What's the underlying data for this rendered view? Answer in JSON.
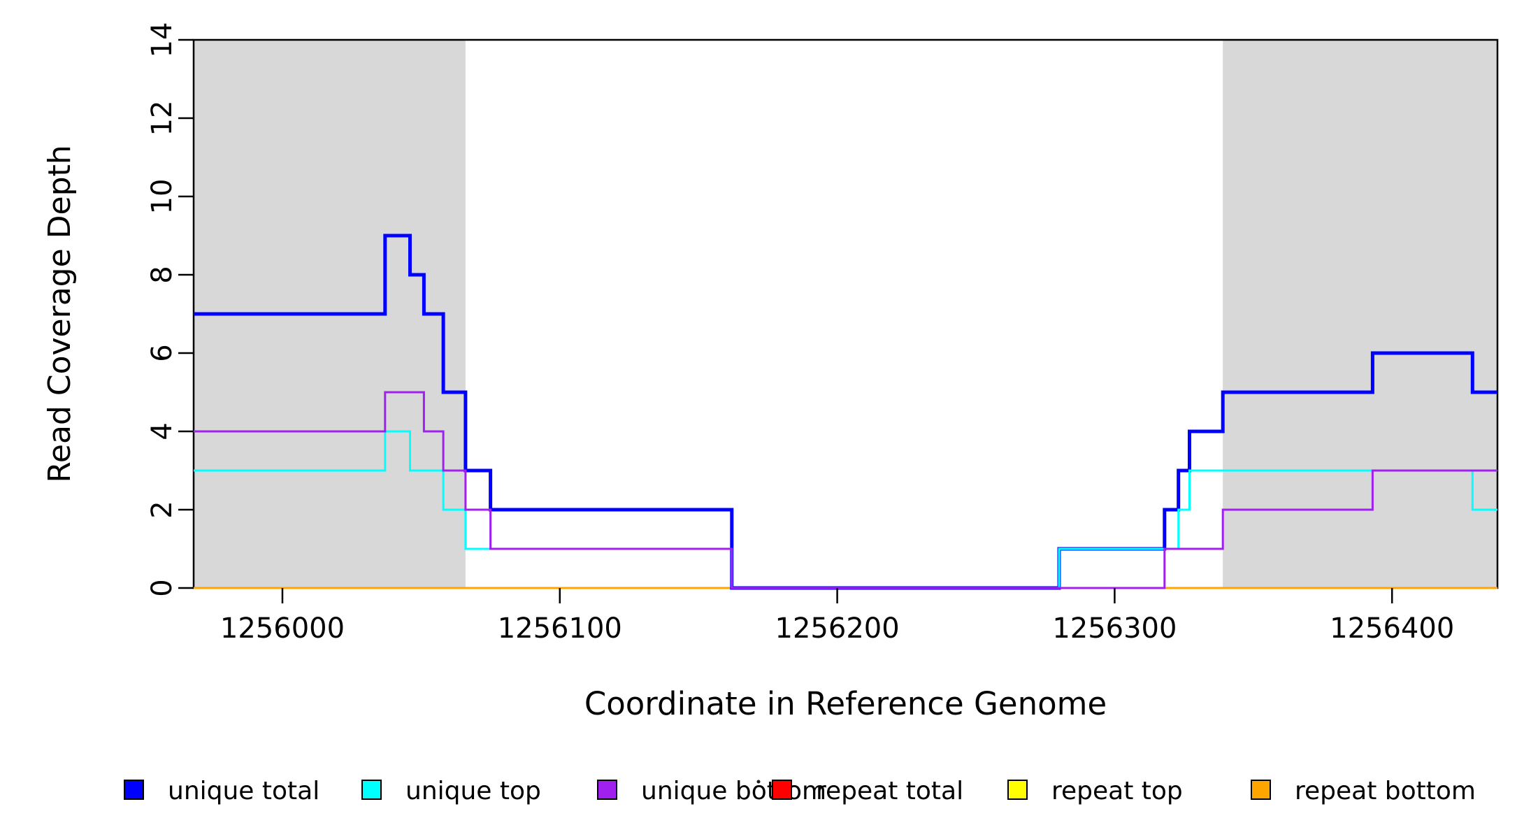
{
  "chart_data": {
    "type": "line",
    "subtype": "step",
    "title": "",
    "xlabel": "Coordinate in Reference Genome",
    "ylabel": "Read Coverage Depth",
    "xlim": [
      1255968,
      1256438
    ],
    "ylim": [
      0,
      14
    ],
    "grid": false,
    "x_ticks": {
      "values": [
        1256000,
        1256100,
        1256200,
        1256300,
        1256400
      ],
      "labels": [
        "1256000",
        "1256100",
        "1256200",
        "1256300",
        "1256400"
      ]
    },
    "y_ticks": {
      "values": [
        0,
        2,
        4,
        6,
        8,
        10,
        12,
        14
      ],
      "labels": [
        "0",
        "2",
        "4",
        "6",
        "8",
        "10",
        "12",
        "14"
      ]
    },
    "shaded_regions": [
      {
        "x0": 1255968,
        "x1": 1256066,
        "color": "#d8d8d8"
      },
      {
        "x0": 1256339,
        "x1": 1256438,
        "color": "#d8d8d8"
      }
    ],
    "series": [
      {
        "name": "unique total",
        "color": "#0000ff",
        "line_width": 5,
        "steps": [
          [
            1255968,
            7
          ],
          [
            1256037,
            9
          ],
          [
            1256046,
            8
          ],
          [
            1256051,
            7
          ],
          [
            1256058,
            5
          ],
          [
            1256066,
            3
          ],
          [
            1256075,
            2
          ],
          [
            1256162,
            0
          ],
          [
            1256280,
            1
          ],
          [
            1256318,
            2
          ],
          [
            1256323,
            3
          ],
          [
            1256327,
            4
          ],
          [
            1256339,
            5
          ],
          [
            1256393,
            6
          ],
          [
            1256429,
            5
          ]
        ]
      },
      {
        "name": "unique top",
        "color": "#00ffff",
        "line_width": 3,
        "steps": [
          [
            1255968,
            3
          ],
          [
            1256037,
            4
          ],
          [
            1256046,
            3
          ],
          [
            1256058,
            2
          ],
          [
            1256066,
            1
          ],
          [
            1256162,
            0
          ],
          [
            1256280,
            1
          ],
          [
            1256323,
            2
          ],
          [
            1256327,
            3
          ],
          [
            1256429,
            2
          ]
        ]
      },
      {
        "name": "unique bottom",
        "color": "#a020f0",
        "line_width": 3,
        "steps": [
          [
            1255968,
            4
          ],
          [
            1256037,
            5
          ],
          [
            1256051,
            4
          ],
          [
            1256058,
            3
          ],
          [
            1256066,
            2
          ],
          [
            1256075,
            1
          ],
          [
            1256162,
            0
          ],
          [
            1256318,
            1
          ],
          [
            1256339,
            2
          ],
          [
            1256393,
            3
          ]
        ]
      },
      {
        "name": "repeat total",
        "color": "#ff0000",
        "line_width": 3,
        "steps": [
          [
            1255968,
            0
          ]
        ]
      },
      {
        "name": "repeat top",
        "color": "#ffff00",
        "line_width": 3,
        "steps": [
          [
            1255968,
            0
          ]
        ]
      },
      {
        "name": "repeat bottom",
        "color": "#ffa500",
        "line_width": 3,
        "steps": [
          [
            1255968,
            0
          ]
        ]
      }
    ],
    "draw_order": [
      "repeat total",
      "repeat top",
      "repeat bottom",
      "unique total",
      "unique top",
      "unique bottom"
    ],
    "legend": {
      "position": "bottom",
      "stray_dot": true,
      "items": [
        {
          "label": "unique total",
          "color": "#0000ff"
        },
        {
          "label": "unique top",
          "color": "#00ffff"
        },
        {
          "label": "unique bottom",
          "color": "#a020f0"
        },
        {
          "label": "repeat total",
          "color": "#ff0000"
        },
        {
          "label": "repeat top",
          "color": "#ffff00"
        },
        {
          "label": "repeat bottom",
          "color": "#ffa500"
        }
      ]
    }
  }
}
